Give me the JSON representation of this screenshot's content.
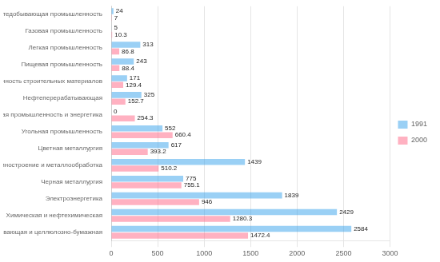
{
  "chart_data": {
    "type": "bar",
    "orientation": "horizontal",
    "categories": [
      "Деревообрабатывающая и целлюлозно-бумажная",
      "Химическая и нефтехимическая",
      "Электроэнергетика",
      "Черная металлургия",
      "Машиностроение и металлообработка",
      "Цветная металлургия",
      "Угольная промышленность",
      "Атомная промышленность и энергетика",
      "Нефтеперерабатывающая",
      "Промышленность строительных материалов",
      "Пищевая промышленность",
      "Легкая промышленность",
      "Газовая промышленность",
      "Нефтедобывающая промышленность"
    ],
    "series": [
      {
        "name": "1991",
        "values": [
          2584,
          2429,
          1839,
          775,
          1439,
          617,
          552,
          0,
          325,
          171,
          243,
          313,
          5,
          24
        ]
      },
      {
        "name": "2000",
        "values": [
          1472.4,
          1280.3,
          946,
          755.1,
          510.2,
          393.2,
          660.4,
          254.3,
          152.7,
          129.4,
          88.4,
          86.8,
          10.3,
          7
        ]
      }
    ],
    "xlim": [
      0,
      3000
    ],
    "xticks": [
      0,
      500,
      1000,
      1500,
      2000,
      2500,
      3000
    ],
    "grid": true,
    "legend": "right",
    "data_labels": true
  }
}
